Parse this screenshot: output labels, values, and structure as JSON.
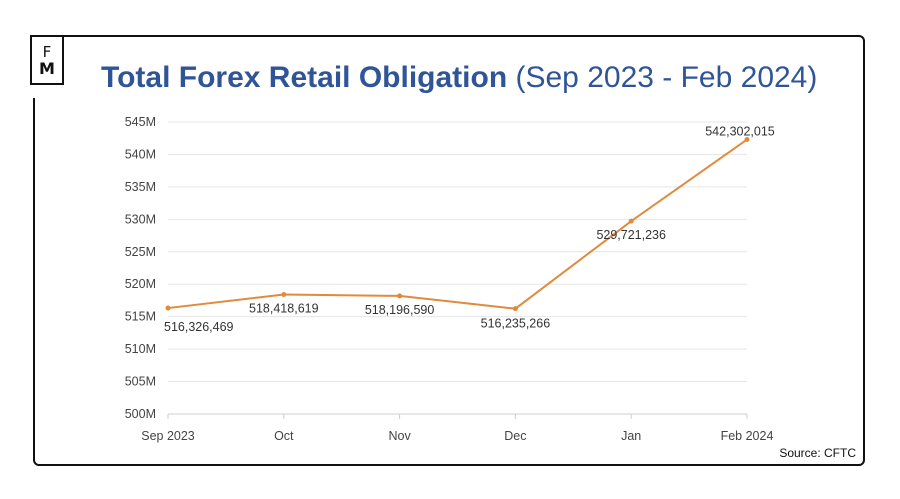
{
  "logo": {
    "line1": "F",
    "line2": "M"
  },
  "header": {
    "title_main": "Total Forex Retail Obligation",
    "title_sub": "(Sep 2023 - Feb 2024)"
  },
  "footer": {
    "source": "Source: CFTC"
  },
  "colors": {
    "line": "#e08a3c",
    "title": "#2f5597",
    "grid": "#e6e6e6"
  },
  "chart_data": {
    "type": "line",
    "title": "Total Forex Retail Obligation (Sep 2023 - Feb 2024)",
    "categories": [
      "Sep 2023",
      "Oct",
      "Nov",
      "Dec",
      "Jan",
      "Feb 2024"
    ],
    "series": [
      {
        "values": [
          516326469,
          518418619,
          518196590,
          516235266,
          529721236,
          542302015
        ]
      }
    ],
    "data_labels": [
      "516,326,469",
      "518,418,619",
      "518,196,590",
      "516,235,266",
      "529,721,236",
      "542,302,015"
    ],
    "y_ticks": [
      "500M",
      "505M",
      "510M",
      "515M",
      "520M",
      "525M",
      "530M",
      "535M",
      "540M",
      "545M"
    ],
    "ylim": [
      500000000,
      545000000
    ],
    "grid": true,
    "legend": "none"
  }
}
